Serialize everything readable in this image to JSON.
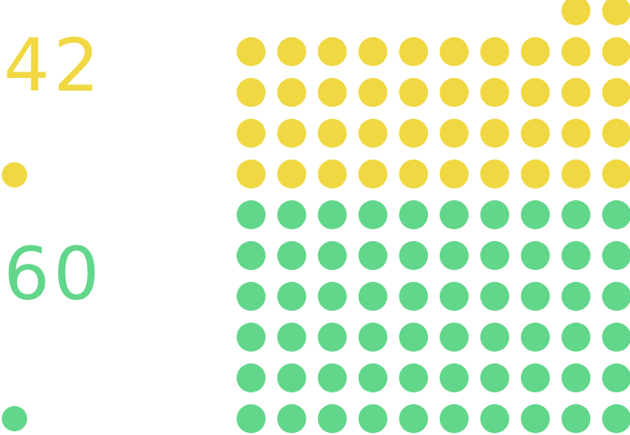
{
  "colors": {
    "yellow": "#f0d843",
    "green": "#62d68a"
  },
  "chart_data": {
    "type": "dot-matrix",
    "columns": 10,
    "series": [
      {
        "label": "42",
        "value": 42,
        "color": "#f0d843"
      },
      {
        "label": "60",
        "value": 60,
        "color": "#62d68a"
      }
    ]
  }
}
